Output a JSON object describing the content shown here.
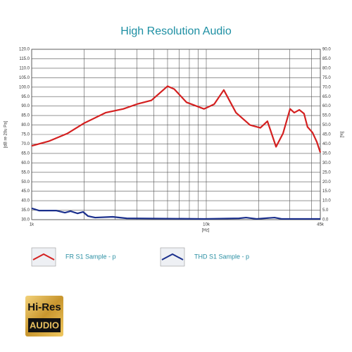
{
  "chart_data": {
    "type": "line",
    "title": "High Resolution Audio",
    "xlabel": "[Hz]",
    "ylabel": "[dB re 20u Pa]",
    "y2label": "[%]",
    "xscale": "log",
    "xlim": [
      1000,
      45000
    ],
    "xticks": [
      {
        "value": 1000,
        "label": "1k"
      },
      {
        "value": 10000,
        "label": "10k"
      },
      {
        "value": 45000,
        "label": "45k"
      }
    ],
    "x_grid": [
      2000,
      3000,
      4000,
      5000,
      6000,
      7000,
      8000,
      9000,
      20000,
      30000,
      40000
    ],
    "ylim": [
      30,
      120
    ],
    "yticks": [
      {
        "value": 30,
        "label": "30.0"
      },
      {
        "value": 35,
        "label": "35.0"
      },
      {
        "value": 40,
        "label": "40.0"
      },
      {
        "value": 45,
        "label": "45.0"
      },
      {
        "value": 50,
        "label": "50.0"
      },
      {
        "value": 55,
        "label": "55.0"
      },
      {
        "value": 60,
        "label": "60.0"
      },
      {
        "value": 65,
        "label": "65.0"
      },
      {
        "value": 70,
        "label": "70.0"
      },
      {
        "value": 75,
        "label": "75.0"
      },
      {
        "value": 80,
        "label": "80.0"
      },
      {
        "value": 85,
        "label": "85.0"
      },
      {
        "value": 90,
        "label": "90.0"
      },
      {
        "value": 95,
        "label": "95.0"
      },
      {
        "value": 100,
        "label": "100.0"
      },
      {
        "value": 105,
        "label": "105.0"
      },
      {
        "value": 110,
        "label": "110.0"
      },
      {
        "value": 115,
        "label": "115.0"
      },
      {
        "value": 120,
        "label": "120.0"
      }
    ],
    "y2lim": [
      0,
      90
    ],
    "y2ticks": [
      {
        "value": 0,
        "label": "0.0"
      },
      {
        "value": 5,
        "label": "5.0"
      },
      {
        "value": 10,
        "label": "10.0"
      },
      {
        "value": 15,
        "label": "15.0"
      },
      {
        "value": 20,
        "label": "20.0"
      },
      {
        "value": 25,
        "label": "25.0"
      },
      {
        "value": 30,
        "label": "30.0"
      },
      {
        "value": 35,
        "label": "35.0"
      },
      {
        "value": 40,
        "label": "40.0"
      },
      {
        "value": 45,
        "label": "45.0"
      },
      {
        "value": 50,
        "label": "50.0"
      },
      {
        "value": 55,
        "label": "55.0"
      },
      {
        "value": 60,
        "label": "60.0"
      },
      {
        "value": 65,
        "label": "65.0"
      },
      {
        "value": 70,
        "label": "70.0"
      },
      {
        "value": 75,
        "label": "75.0"
      },
      {
        "value": 80,
        "label": "80.0"
      },
      {
        "value": 85,
        "label": "85.0"
      },
      {
        "value": 90,
        "label": "90.0"
      }
    ],
    "grid": true,
    "series": [
      {
        "name": "FR S1 Sample - p",
        "color": "#d42020",
        "x": [
          1000,
          1260,
          1600,
          2000,
          2650,
          3350,
          4000,
          4850,
          6000,
          6550,
          7700,
          9700,
          11100,
          12600,
          14800,
          17800,
          20400,
          22400,
          25100,
          27500,
          30200,
          31900,
          34100,
          36300,
          38000,
          40600,
          43000,
          45000
        ],
        "values": [
          69,
          71.5,
          75.5,
          81,
          86.5,
          88.5,
          91,
          93,
          100.5,
          99,
          92,
          88.5,
          91,
          98.5,
          86.5,
          80,
          78.5,
          82,
          68.5,
          75.5,
          88.5,
          86.5,
          88,
          86,
          79,
          76,
          71,
          65.5
        ]
      },
      {
        "name": "THD S1 Sample - p",
        "color": "#1a2f8c",
        "axis": "y2",
        "x": [
          1000,
          1100,
          1380,
          1550,
          1670,
          1830,
          1970,
          2100,
          2310,
          2910,
          3500,
          9700,
          15400,
          16900,
          19400,
          24600,
          27000,
          45000
        ],
        "values": [
          6,
          4.8,
          4.8,
          3.7,
          4.5,
          3.3,
          4.1,
          1.9,
          1.1,
          1.5,
          0.7,
          0.4,
          0.7,
          1.1,
          0.4,
          1.1,
          0.4,
          0.4
        ]
      }
    ]
  },
  "logo": {
    "line1": "Hi-Res",
    "line2": "AUDIO"
  }
}
